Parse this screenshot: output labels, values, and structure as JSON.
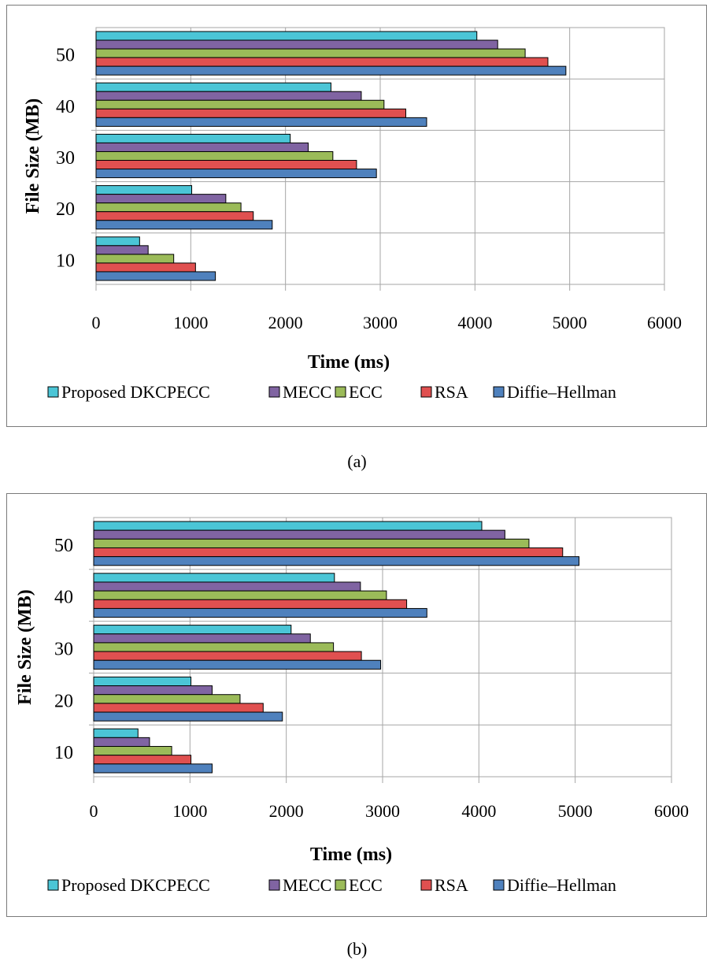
{
  "colors": {
    "series": [
      "#4bc5d6",
      "#8064a2",
      "#9bbb59",
      "#e05050",
      "#4f81bd"
    ],
    "grid": "#a6a6a6",
    "bar_stroke": "#000000"
  },
  "captions": [
    "(a)",
    "(b)"
  ],
  "chart_data": [
    {
      "type": "bar",
      "orientation": "horizontal",
      "title": "",
      "xlabel": "Time (ms)",
      "ylabel": "File Size (MB)",
      "categories": [
        "10",
        "20",
        "30",
        "40",
        "50"
      ],
      "xlim": [
        0,
        6000
      ],
      "xticks": [
        "0",
        "1000",
        "2000",
        "3000",
        "4000",
        "5000",
        "6000"
      ],
      "grid": true,
      "legend_position": "bottom",
      "series": [
        {
          "name": "Proposed DKCPECC",
          "values": [
            460,
            1010,
            2050,
            2480,
            4020
          ]
        },
        {
          "name": "MECC",
          "values": [
            550,
            1370,
            2240,
            2800,
            4240
          ]
        },
        {
          "name": "ECC",
          "values": [
            820,
            1530,
            2500,
            3040,
            4530
          ]
        },
        {
          "name": "RSA",
          "values": [
            1050,
            1660,
            2750,
            3270,
            4770
          ]
        },
        {
          "name": "Diffie–Hellman",
          "values": [
            1260,
            1860,
            2960,
            3490,
            4960
          ]
        }
      ]
    },
    {
      "type": "bar",
      "orientation": "horizontal",
      "title": "",
      "xlabel": "Time (ms)",
      "ylabel": "File Size (MB)",
      "categories": [
        "10",
        "20",
        "30",
        "40",
        "50"
      ],
      "xlim": [
        0,
        6000
      ],
      "xticks": [
        "0",
        "1000",
        "2000",
        "3000",
        "4000",
        "5000",
        "6000"
      ],
      "grid": true,
      "legend_position": "bottom",
      "series": [
        {
          "name": "Proposed DKCPECC",
          "values": [
            460,
            1010,
            2050,
            2500,
            4030
          ]
        },
        {
          "name": "MECC",
          "values": [
            580,
            1230,
            2250,
            2770,
            4270
          ]
        },
        {
          "name": "ECC",
          "values": [
            810,
            1520,
            2490,
            3040,
            4520
          ]
        },
        {
          "name": "RSA",
          "values": [
            1010,
            1760,
            2780,
            3250,
            4870
          ]
        },
        {
          "name": "Diffie–Hellman",
          "values": [
            1230,
            1960,
            2980,
            3460,
            5040
          ]
        }
      ]
    }
  ]
}
